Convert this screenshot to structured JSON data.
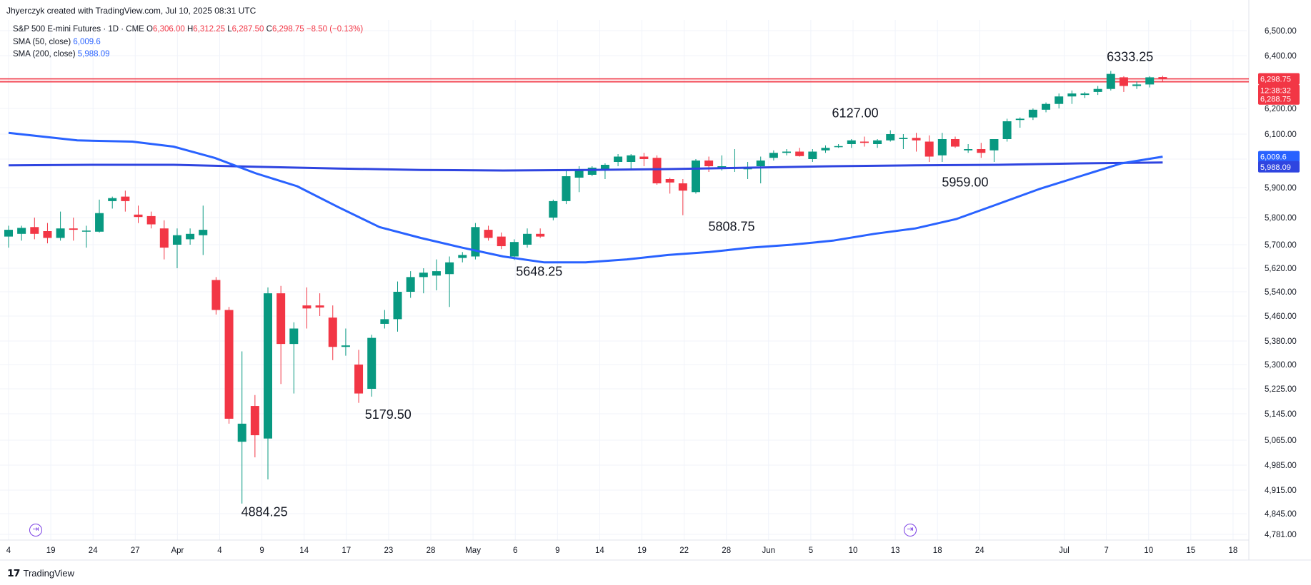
{
  "caption": "Jhyerczyk created with TradingView.com, Jul 10, 2025 08:31 UTC",
  "legend": {
    "symbol": "S&P 500 E-mini Futures · 1D · CME",
    "o_label": "O",
    "o": "6,306.00",
    "h_label": "H",
    "h": "6,312.25",
    "l_label": "L",
    "l": "6,287.50",
    "c_label": "C",
    "c": "6,298.75",
    "chg": "−8.50 (−0.13%)",
    "sma50_label": "SMA (50, close)",
    "sma50": "6,009.6",
    "sma200_label": "SMA (200, close)",
    "sma200": "5,988.09"
  },
  "price_tags": {
    "last": "6,298.75",
    "countdown": "12:38:32",
    "low": "6,288.75",
    "sma50": "6,009.6",
    "sma200": "5,988.09"
  },
  "footer": {
    "logo": "TradingView"
  },
  "colors": {
    "up": "#089981",
    "down": "#f23645",
    "sma50": "#2962ff",
    "sma200": "#2f45e0",
    "grid": "#f0f3fa"
  },
  "chart_data": {
    "type": "candlestick",
    "yaxis_ticks": [
      6500,
      6400,
      6300,
      6200,
      6100,
      6000,
      5900,
      5800,
      5700,
      5620,
      5540,
      5460,
      5380,
      5300,
      5225,
      5145,
      5065,
      4985,
      4915,
      4845,
      4781
    ],
    "yaxis_tick_labels": [
      "6,500.00",
      "6,400.00",
      "6,300.00",
      "6,200.00",
      "6,100.00",
      "6,000.00",
      "5,900.00",
      "5,800.00",
      "5,700.00",
      "5,620.00",
      "5,540.00",
      "5,460.00",
      "5,380.00",
      "5,300.00",
      "5,225.00",
      "5,145.00",
      "5,065.00",
      "4,985.00",
      "4,915.00",
      "4,845.00",
      "4,781.00"
    ],
    "x_labels": [
      {
        "i": 0,
        "t": "4"
      },
      {
        "i": 3,
        "t": "19"
      },
      {
        "i": 6,
        "t": "24"
      },
      {
        "i": 9,
        "t": "27"
      },
      {
        "i": 12,
        "t": "Apr"
      },
      {
        "i": 15,
        "t": "4"
      },
      {
        "i": 18,
        "t": "9"
      },
      {
        "i": 21,
        "t": "14"
      },
      {
        "i": 24,
        "t": "17"
      },
      {
        "i": 27,
        "t": "23"
      },
      {
        "i": 30,
        "t": "28"
      },
      {
        "i": 33,
        "t": "May"
      },
      {
        "i": 36,
        "t": "6"
      },
      {
        "i": 39,
        "t": "9"
      },
      {
        "i": 42,
        "t": "14"
      },
      {
        "i": 45,
        "t": "19"
      },
      {
        "i": 48,
        "t": "22"
      },
      {
        "i": 51,
        "t": "28"
      },
      {
        "i": 54,
        "t": "Jun"
      },
      {
        "i": 57,
        "t": "5"
      },
      {
        "i": 60,
        "t": "10"
      },
      {
        "i": 63,
        "t": "13"
      },
      {
        "i": 66,
        "t": "18"
      },
      {
        "i": 69,
        "t": "24"
      },
      {
        "i": 75,
        "t": "Jul"
      },
      {
        "i": 78,
        "t": "7"
      },
      {
        "i": 81,
        "t": "10"
      },
      {
        "i": 84,
        "t": "15"
      },
      {
        "i": 87,
        "t": "18"
      }
    ],
    "candles": [
      [
        5730,
        5770,
        5690,
        5755
      ],
      [
        5740,
        5770,
        5715,
        5762
      ],
      [
        5765,
        5800,
        5720,
        5740
      ],
      [
        5750,
        5780,
        5705,
        5725
      ],
      [
        5725,
        5820,
        5715,
        5760
      ],
      [
        5760,
        5800,
        5715,
        5755
      ],
      [
        5750,
        5770,
        5690,
        5752
      ],
      [
        5748,
        5860,
        5745,
        5815
      ],
      [
        5855,
        5870,
        5830,
        5865
      ],
      [
        5870,
        5890,
        5820,
        5855
      ],
      [
        5810,
        5840,
        5780,
        5802
      ],
      [
        5805,
        5820,
        5760,
        5775
      ],
      [
        5760,
        5790,
        5650,
        5690
      ],
      [
        5700,
        5760,
        5620,
        5735
      ],
      [
        5720,
        5760,
        5700,
        5740
      ],
      [
        5735,
        5840,
        5665,
        5755
      ],
      [
        5580,
        5590,
        5465,
        5480
      ],
      [
        5480,
        5490,
        5115,
        5130
      ],
      [
        5060,
        5345,
        4875,
        5115
      ],
      [
        5170,
        5205,
        5010,
        5080
      ],
      [
        5070,
        5555,
        4945,
        5535
      ],
      [
        5535,
        5560,
        5240,
        5370
      ],
      [
        5370,
        5440,
        5210,
        5420
      ],
      [
        5495,
        5555,
        5420,
        5485
      ],
      [
        5495,
        5535,
        5460,
        5488
      ],
      [
        5455,
        5495,
        5315,
        5360
      ],
      [
        5360,
        5420,
        5330,
        5365
      ],
      [
        5300,
        5350,
        5180,
        5210
      ],
      [
        5225,
        5400,
        5200,
        5390
      ],
      [
        5435,
        5480,
        5420,
        5450
      ],
      [
        5450,
        5575,
        5410,
        5540
      ],
      [
        5540,
        5610,
        5520,
        5590
      ],
      [
        5590,
        5620,
        5535,
        5605
      ],
      [
        5595,
        5650,
        5545,
        5610
      ],
      [
        5600,
        5660,
        5490,
        5640
      ],
      [
        5655,
        5675,
        5640,
        5665
      ],
      [
        5660,
        5780,
        5650,
        5765
      ],
      [
        5755,
        5770,
        5715,
        5725
      ],
      [
        5730,
        5745,
        5685,
        5695
      ],
      [
        5660,
        5720,
        5648,
        5710
      ],
      [
        5700,
        5760,
        5690,
        5740
      ],
      [
        5740,
        5760,
        5725,
        5730
      ],
      [
        5800,
        5860,
        5790,
        5855
      ],
      [
        5855,
        5960,
        5845,
        5940
      ],
      [
        5935,
        5975,
        5885,
        5960
      ],
      [
        5945,
        5975,
        5940,
        5970
      ],
      [
        5960,
        5985,
        5930,
        5980
      ],
      [
        5990,
        6020,
        5975,
        6010
      ],
      [
        5990,
        6020,
        5960,
        6015
      ],
      [
        6010,
        6025,
        5975,
        6000
      ],
      [
        6005,
        6015,
        5910,
        5915
      ],
      [
        5930,
        5935,
        5880,
        5918
      ],
      [
        5915,
        5930,
        5808,
        5890
      ],
      [
        5885,
        6000,
        5880,
        5995
      ],
      [
        5995,
        6010,
        5955,
        5975
      ],
      [
        5970,
        6015,
        5960,
        5975
      ],
      [
        5970,
        6040,
        5955,
        5972
      ],
      [
        5965,
        5990,
        5930,
        5968
      ],
      [
        5975,
        6010,
        5915,
        5995
      ],
      [
        6005,
        6035,
        5995,
        6025
      ],
      [
        6025,
        6040,
        6015,
        6030
      ],
      [
        6030,
        6045,
        6010,
        6012
      ],
      [
        6000,
        6040,
        5990,
        6030
      ],
      [
        6035,
        6055,
        6025,
        6045
      ],
      [
        6050,
        6060,
        6045,
        6052
      ],
      [
        6060,
        6080,
        6045,
        6075
      ],
      [
        6070,
        6090,
        6050,
        6065
      ],
      [
        6060,
        6080,
        6045,
        6075
      ],
      [
        6075,
        6115,
        6070,
        6100
      ],
      [
        6080,
        6100,
        6040,
        6085
      ],
      [
        6085,
        6105,
        6030,
        6075
      ],
      [
        6070,
        6095,
        5990,
        6010
      ],
      [
        6015,
        6105,
        5990,
        6080
      ],
      [
        6080,
        6090,
        6045,
        6050
      ],
      [
        6035,
        6060,
        6025,
        6040
      ],
      [
        6040,
        6065,
        6005,
        6025
      ]
    ],
    "candles_extra": [
      [
        6035,
        6060,
        5990,
        6080
      ],
      [
        6080,
        6160,
        6070,
        6150
      ],
      [
        6155,
        6165,
        6125,
        6160
      ],
      [
        6165,
        6200,
        6155,
        6195
      ],
      [
        6195,
        6220,
        6185,
        6215
      ],
      [
        6215,
        6250,
        6200,
        6240
      ],
      [
        6240,
        6260,
        6215,
        6250
      ],
      [
        6245,
        6255,
        6235,
        6250
      ],
      [
        6255,
        6275,
        6245,
        6265
      ],
      [
        6265,
        6333,
        6260,
        6320
      ],
      [
        6305,
        6310,
        6255,
        6275
      ],
      [
        6275,
        6290,
        6265,
        6280
      ],
      [
        6280,
        6310,
        6270,
        6305
      ],
      [
        6306,
        6312,
        6287,
        6299
      ]
    ],
    "sma50": [
      [
        0,
        6105
      ],
      [
        5,
        6075
      ],
      [
        9,
        6070
      ],
      [
        12,
        6050
      ],
      [
        15,
        6005
      ],
      [
        18,
        5950
      ],
      [
        21,
        5905
      ],
      [
        24,
        5835
      ],
      [
        27,
        5765
      ],
      [
        30,
        5725
      ],
      [
        33,
        5690
      ],
      [
        36,
        5660
      ],
      [
        39,
        5640
      ],
      [
        42,
        5640
      ],
      [
        45,
        5650
      ],
      [
        48,
        5665
      ],
      [
        51,
        5675
      ],
      [
        54,
        5690
      ],
      [
        57,
        5700
      ],
      [
        60,
        5715
      ],
      [
        63,
        5740
      ],
      [
        66,
        5760
      ],
      [
        69,
        5795
      ],
      [
        72,
        5845
      ],
      [
        75,
        5895
      ],
      [
        78,
        5940
      ],
      [
        81,
        5985
      ],
      [
        84,
        6009.6
      ]
    ],
    "sma200": [
      [
        0,
        5978
      ],
      [
        6,
        5980
      ],
      [
        12,
        5980
      ],
      [
        18,
        5973
      ],
      [
        24,
        5967
      ],
      [
        30,
        5962
      ],
      [
        36,
        5960
      ],
      [
        42,
        5962
      ],
      [
        48,
        5965
      ],
      [
        54,
        5970
      ],
      [
        60,
        5975
      ],
      [
        66,
        5978
      ],
      [
        72,
        5980
      ],
      [
        78,
        5985
      ],
      [
        84,
        5988.09
      ]
    ],
    "annotations": [
      {
        "i": 18,
        "v": 4884.25,
        "label": "4884.25",
        "pos": "below"
      },
      {
        "i": 27,
        "v": 5179.5,
        "label": "5179.50",
        "pos": "below"
      },
      {
        "i": 38,
        "v": 5648.25,
        "label": "5648.25",
        "pos": "below"
      },
      {
        "i": 52,
        "v": 5808.75,
        "label": "5808.75",
        "pos": "below"
      },
      {
        "i": 61,
        "v": 6127.0,
        "label": "6127.00",
        "pos": "above"
      },
      {
        "i": 69,
        "v": 5959.0,
        "label": "5959.00",
        "pos": "below"
      },
      {
        "i": 81,
        "v": 6333.25,
        "label": "6333.25",
        "pos": "above"
      }
    ],
    "last_price": 6298.75,
    "resistance_band": [
      6288.75,
      6298.75
    ]
  }
}
